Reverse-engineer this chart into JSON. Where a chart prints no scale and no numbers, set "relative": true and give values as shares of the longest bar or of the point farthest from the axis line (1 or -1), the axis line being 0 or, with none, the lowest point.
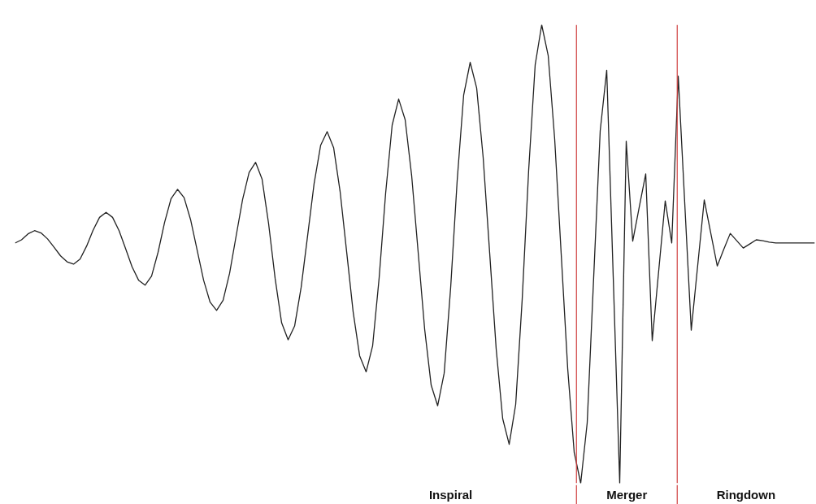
{
  "chart_data": {
    "type": "line",
    "relative": true,
    "tick_labels": false,
    "categories": [
      null,
      null,
      null,
      null,
      null,
      null,
      null,
      null,
      null,
      null,
      null,
      null,
      null,
      null,
      null,
      null,
      null,
      null,
      null,
      null,
      null,
      null,
      null,
      null,
      null,
      null,
      null,
      null,
      null,
      null,
      null,
      null,
      null,
      null,
      null,
      null,
      null,
      null,
      null,
      null,
      null,
      null,
      null,
      null,
      null,
      null,
      null,
      null,
      null,
      null,
      null,
      null,
      null,
      null,
      null,
      null,
      null,
      null,
      null,
      null,
      null,
      null,
      null,
      null,
      null,
      null,
      null,
      null,
      null,
      null,
      null,
      null,
      null,
      null,
      null,
      null,
      null,
      null,
      null,
      null,
      null,
      null,
      null,
      null,
      null,
      null,
      null,
      null,
      null,
      null,
      null,
      null,
      null,
      null,
      null,
      null,
      null,
      null,
      null,
      null,
      null,
      null,
      null,
      null,
      null,
      null,
      null,
      null,
      null,
      null,
      null,
      null,
      null,
      null,
      null,
      null,
      null,
      null,
      null,
      null,
      null,
      null,
      null,
      null
    ],
    "series": [
      {
        "color": "#222222",
        "values": [
          0.524,
          0.531,
          0.544,
          0.551,
          0.546,
          0.533,
          0.515,
          0.496,
          0.483,
          0.478,
          0.489,
          0.517,
          0.552,
          0.58,
          0.591,
          0.58,
          0.551,
          0.512,
          0.472,
          0.443,
          0.432,
          0.452,
          0.504,
          0.569,
          0.621,
          0.641,
          0.623,
          0.575,
          0.509,
          0.443,
          0.395,
          0.377,
          0.399,
          0.458,
          0.539,
          0.619,
          0.678,
          0.7,
          0.663,
          0.566,
          0.447,
          0.35,
          0.313,
          0.343,
          0.427,
          0.54,
          0.654,
          0.737,
          0.767,
          0.732,
          0.636,
          0.505,
          0.374,
          0.278,
          0.243,
          0.3,
          0.448,
          0.633,
          0.781,
          0.838,
          0.793,
          0.671,
          0.504,
          0.336,
          0.214,
          0.169,
          0.24,
          0.427,
          0.66,
          0.847,
          0.918,
          0.862,
          0.71,
          0.502,
          0.293,
          0.141,
          0.085,
          0.172,
          0.401,
          0.684,
          0.913,
          1,
          0.933,
          0.75,
          0.5,
          0.25,
          0.067,
          0,
          0.132,
          0.451,
          0.769,
          0.901,
          0.451,
          0,
          0.746,
          0.528,
          0.602,
          0.675,
          0.311,
          0.464,
          0.616,
          0.524,
          0.888,
          0.611,
          0.334,
          0.476,
          0.618,
          0.546,
          0.474,
          0.51,
          0.545,
          0.529,
          0.513,
          0.522,
          0.531,
          0.529,
          0.526,
          0.524,
          0.524,
          0.524,
          0.524,
          0.524,
          0.524,
          0.524
        ]
      }
    ],
    "annotations": [
      "Inspiral",
      "Merger",
      "Ringdown"
    ]
  }
}
